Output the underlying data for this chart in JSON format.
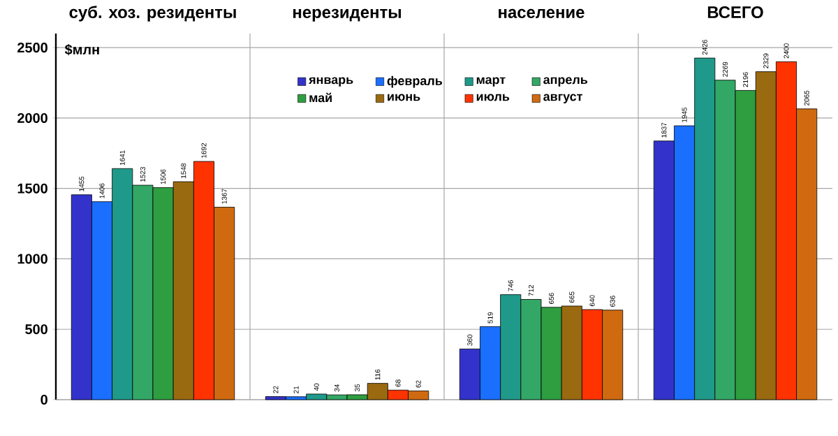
{
  "chart_data": {
    "type": "bar",
    "ylabel": "$млн",
    "categories": [
      "суб. хоз. резиденты",
      "нерезиденты",
      "население",
      "ВСЕГО"
    ],
    "series": [
      {
        "name": "январь",
        "color": "#3333cc",
        "values": [
          1455,
          22,
          360,
          1837
        ]
      },
      {
        "name": "февраль",
        "color": "#1a6fff",
        "values": [
          1406,
          21,
          519,
          1945
        ]
      },
      {
        "name": "март",
        "color": "#1f9a8a",
        "values": [
          1641,
          40,
          746,
          2426
        ]
      },
      {
        "name": "апрель",
        "color": "#33a866",
        "values": [
          1523,
          34,
          712,
          2269
        ]
      },
      {
        "name": "май",
        "color": "#2e9e40",
        "values": [
          1506,
          35,
          656,
          2196
        ]
      },
      {
        "name": "июнь",
        "color": "#9a6a10",
        "values": [
          1548,
          116,
          665,
          2329
        ]
      },
      {
        "name": "июль",
        "color": "#ff3300",
        "values": [
          1692,
          68,
          640,
          2400
        ]
      },
      {
        "name": "август",
        "color": "#d06a10",
        "values": [
          1367,
          62,
          636,
          2065
        ]
      }
    ],
    "ylim": [
      0,
      2600
    ],
    "yticks": [
      0,
      500,
      1000,
      1500,
      2000,
      2500
    ],
    "data_labels": true,
    "grid": true,
    "legend": "top"
  }
}
